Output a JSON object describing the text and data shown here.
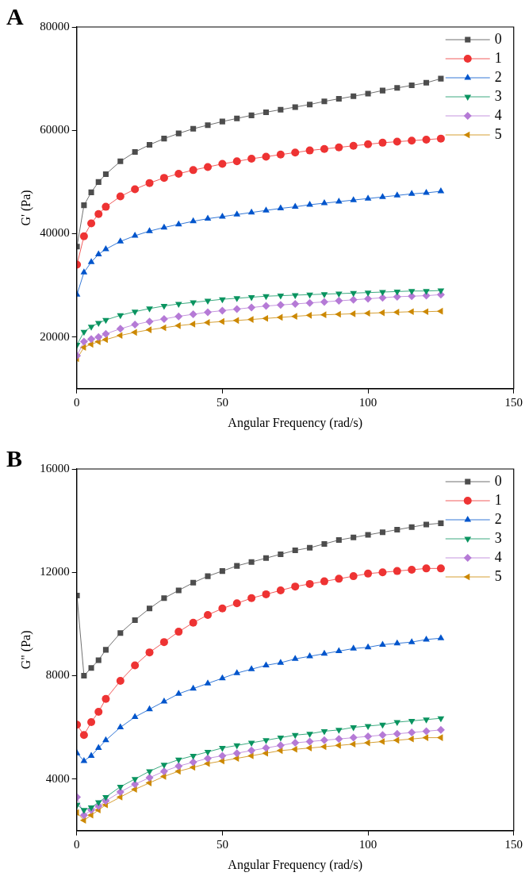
{
  "chart_data": [
    {
      "type": "line",
      "annotations": [
        "A"
      ],
      "xlabel": "Angular Frequency (rad/s)",
      "ylabel": "G' (Pa)",
      "xlim": [
        0,
        150
      ],
      "xticks": [
        0,
        50,
        100,
        150
      ],
      "ylim": [
        10000,
        80000
      ],
      "yticks": [
        20000,
        40000,
        60000,
        80000
      ],
      "grid": false,
      "legend": "top right",
      "line_style": "solid",
      "x": [
        0.1,
        2.5,
        5,
        7.5,
        10,
        15,
        20,
        25,
        30,
        35,
        40,
        45,
        50,
        55,
        60,
        65,
        70,
        75,
        80,
        85,
        90,
        95,
        100,
        105,
        110,
        115,
        120,
        125
      ],
      "series": [
        {
          "name": "0",
          "color": "#4d4d4d",
          "marker": "square",
          "values": [
            37500,
            45500,
            48000,
            50000,
            51500,
            54000,
            55800,
            57200,
            58400,
            59400,
            60300,
            61000,
            61700,
            62300,
            62900,
            63500,
            64000,
            64500,
            65000,
            65600,
            66100,
            66600,
            67100,
            67700,
            68200,
            68700,
            69200,
            70000
          ]
        },
        {
          "name": "1",
          "color": "#ee3333",
          "marker": "circle",
          "values": [
            34000,
            39500,
            42000,
            43800,
            45200,
            47200,
            48600,
            49800,
            50800,
            51600,
            52300,
            52900,
            53500,
            54000,
            54500,
            54900,
            55300,
            55700,
            56100,
            56400,
            56700,
            57000,
            57300,
            57600,
            57800,
            58000,
            58200,
            58400
          ]
        },
        {
          "name": "2",
          "color": "#0055cc",
          "marker": "triangle",
          "values": [
            28200,
            32500,
            34500,
            36000,
            37000,
            38500,
            39600,
            40500,
            41200,
            41800,
            42400,
            42900,
            43300,
            43700,
            44100,
            44500,
            44900,
            45200,
            45600,
            45900,
            46200,
            46500,
            46800,
            47100,
            47400,
            47700,
            47900,
            48200
          ]
        },
        {
          "name": "3",
          "color": "#0a9460",
          "marker": "triangle-down",
          "values": [
            18500,
            21000,
            22000,
            22700,
            23300,
            24200,
            24900,
            25500,
            26000,
            26400,
            26700,
            27000,
            27300,
            27500,
            27700,
            27900,
            28000,
            28100,
            28200,
            28300,
            28400,
            28500,
            28600,
            28700,
            28800,
            28900,
            28900,
            29000
          ]
        },
        {
          "name": "4",
          "color": "#b57ad6",
          "marker": "diamond",
          "values": [
            16400,
            19100,
            19600,
            20000,
            20600,
            21600,
            22400,
            23000,
            23500,
            24000,
            24400,
            24800,
            25100,
            25400,
            25700,
            26000,
            26200,
            26400,
            26600,
            26800,
            27000,
            27200,
            27400,
            27600,
            27800,
            27900,
            28000,
            28200
          ]
        },
        {
          "name": "5",
          "color": "#cc8800",
          "marker": "triangle-left",
          "values": [
            15800,
            18000,
            18600,
            19100,
            19500,
            20300,
            20900,
            21400,
            21800,
            22200,
            22500,
            22800,
            23000,
            23200,
            23400,
            23600,
            23800,
            24000,
            24200,
            24300,
            24400,
            24500,
            24600,
            24700,
            24800,
            24900,
            24900,
            25000
          ]
        }
      ]
    },
    {
      "type": "line",
      "annotations": [
        "B"
      ],
      "xlabel": "Angular Frequency (rad/s)",
      "ylabel": "G\" (Pa)",
      "xlim": [
        0,
        150
      ],
      "xticks": [
        0,
        50,
        100,
        150
      ],
      "ylim": [
        2000,
        16000
      ],
      "yticks": [
        4000,
        8000,
        12000,
        16000
      ],
      "grid": false,
      "legend": "top right",
      "line_style": "solid",
      "x": [
        0.1,
        2.5,
        5,
        7.5,
        10,
        15,
        20,
        25,
        30,
        35,
        40,
        45,
        50,
        55,
        60,
        65,
        70,
        75,
        80,
        85,
        90,
        95,
        100,
        105,
        110,
        115,
        120,
        125
      ],
      "series": [
        {
          "name": "0",
          "color": "#4d4d4d",
          "marker": "square",
          "values": [
            11100,
            8000,
            8300,
            8600,
            9000,
            9650,
            10150,
            10600,
            11000,
            11300,
            11600,
            11850,
            12050,
            12250,
            12400,
            12550,
            12700,
            12850,
            12950,
            13100,
            13250,
            13350,
            13450,
            13550,
            13650,
            13750,
            13850,
            13900
          ]
        },
        {
          "name": "1",
          "color": "#ee3333",
          "marker": "circle",
          "values": [
            6100,
            5700,
            6200,
            6600,
            7100,
            7800,
            8400,
            8900,
            9300,
            9700,
            10050,
            10350,
            10600,
            10800,
            11000,
            11150,
            11300,
            11450,
            11550,
            11650,
            11750,
            11850,
            11950,
            12000,
            12050,
            12100,
            12150,
            12150
          ]
        },
        {
          "name": "2",
          "color": "#0055cc",
          "marker": "triangle",
          "values": [
            5000,
            4700,
            4900,
            5200,
            5500,
            6000,
            6400,
            6700,
            7000,
            7300,
            7500,
            7700,
            7900,
            8100,
            8250,
            8400,
            8500,
            8650,
            8750,
            8850,
            8950,
            9050,
            9100,
            9200,
            9250,
            9300,
            9400,
            9450
          ]
        },
        {
          "name": "3",
          "color": "#0a9460",
          "marker": "triangle-down",
          "values": [
            3000,
            2800,
            2900,
            3100,
            3300,
            3700,
            4000,
            4300,
            4550,
            4750,
            4900,
            5050,
            5200,
            5300,
            5400,
            5500,
            5600,
            5700,
            5750,
            5850,
            5900,
            6000,
            6050,
            6100,
            6200,
            6250,
            6300,
            6350
          ]
        },
        {
          "name": "4",
          "color": "#b57ad6",
          "marker": "diamond",
          "values": [
            3300,
            2600,
            2800,
            2950,
            3150,
            3500,
            3800,
            4050,
            4300,
            4500,
            4650,
            4800,
            4900,
            5000,
            5100,
            5200,
            5300,
            5400,
            5450,
            5500,
            5550,
            5600,
            5650,
            5700,
            5750,
            5800,
            5850,
            5900
          ]
        },
        {
          "name": "5",
          "color": "#cc8800",
          "marker": "triangle-left",
          "values": [
            2700,
            2400,
            2600,
            2800,
            3000,
            3300,
            3600,
            3850,
            4100,
            4300,
            4450,
            4600,
            4700,
            4800,
            4900,
            5000,
            5100,
            5150,
            5200,
            5250,
            5300,
            5350,
            5400,
            5450,
            5500,
            5550,
            5600,
            5600
          ]
        }
      ]
    }
  ]
}
